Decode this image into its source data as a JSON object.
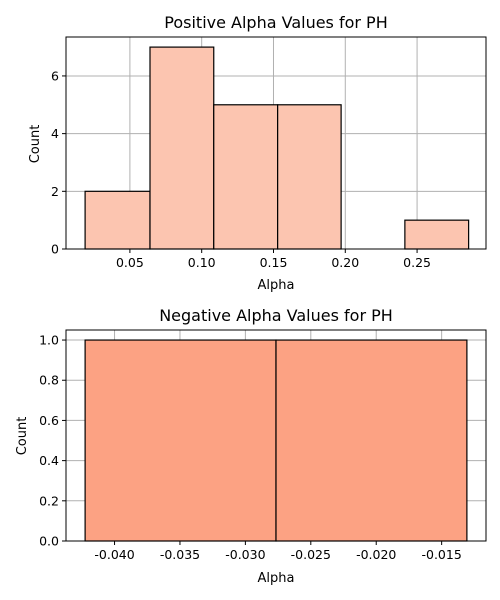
{
  "colors": {
    "background": "#ffffff",
    "axis": "#000000",
    "grid": "#b0b0b0",
    "bar_edge": "#000000"
  },
  "chart_data": [
    {
      "type": "bar",
      "variant": "histogram",
      "title": "Positive Alpha Values for PH",
      "xlabel": "Alpha",
      "ylabel": "Count",
      "xlim": [
        0.0055,
        0.298
      ],
      "ylim": [
        0,
        7.35
      ],
      "xticks": [
        0.05,
        0.1,
        0.15,
        0.2,
        0.25
      ],
      "xtick_labels": [
        "0.05",
        "0.10",
        "0.15",
        "0.20",
        "0.25"
      ],
      "yticks": [
        0,
        2,
        4,
        6
      ],
      "ytick_labels": [
        "0",
        "2",
        "4",
        "6"
      ],
      "grid": true,
      "bar_color": "#fcc5b0",
      "bins": [
        {
          "x0": 0.0188,
          "x1": 0.064,
          "value": 2
        },
        {
          "x0": 0.064,
          "x1": 0.1084,
          "value": 7
        },
        {
          "x0": 0.1084,
          "x1": 0.1529,
          "value": 5
        },
        {
          "x0": 0.1529,
          "x1": 0.1971,
          "value": 5
        },
        {
          "x0": 0.1971,
          "x1": 0.2415,
          "value": 0
        },
        {
          "x0": 0.2415,
          "x1": 0.2859,
          "value": 1
        }
      ]
    },
    {
      "type": "bar",
      "variant": "histogram",
      "title": "Negative Alpha Values for PH",
      "xlabel": "Alpha",
      "ylabel": "Count",
      "xlim": [
        -0.04371,
        -0.01161
      ],
      "ylim": [
        0,
        1.05
      ],
      "xticks": [
        -0.04,
        -0.035,
        -0.03,
        -0.025,
        -0.02,
        -0.015
      ],
      "xtick_labels": [
        "-0.040",
        "-0.035",
        "-0.030",
        "-0.025",
        "-0.020",
        "-0.015"
      ],
      "yticks": [
        0.0,
        0.2,
        0.4,
        0.6,
        0.8,
        1.0
      ],
      "ytick_labels": [
        "0.0",
        "0.2",
        "0.4",
        "0.6",
        "0.8",
        "1.0"
      ],
      "grid": true,
      "bar_color": "#fca283",
      "bins": [
        {
          "x0": -0.04225,
          "x1": -0.02766,
          "value": 1
        },
        {
          "x0": -0.02766,
          "x1": -0.01307,
          "value": 1
        }
      ]
    }
  ]
}
